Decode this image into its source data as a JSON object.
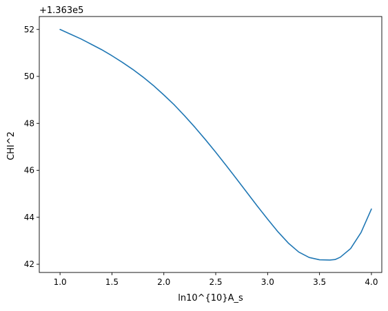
{
  "chart_data": {
    "type": "line",
    "title": "",
    "xlabel": "ln10^{10}A_s",
    "ylabel": "CHI^2",
    "offset_label": "+1.363e5",
    "xlim": [
      0.8,
      4.1
    ],
    "ylim": [
      41.65,
      52.55
    ],
    "x_ticks": [
      1.0,
      1.5,
      2.0,
      2.5,
      3.0,
      3.5,
      4.0
    ],
    "x_tick_labels": [
      "1.0",
      "1.5",
      "2.0",
      "2.5",
      "3.0",
      "3.5",
      "4.0"
    ],
    "y_ticks": [
      42,
      44,
      46,
      48,
      50,
      52
    ],
    "y_tick_labels": [
      "42",
      "44",
      "46",
      "48",
      "50",
      "52"
    ],
    "grid": false,
    "legend": "none",
    "colors": {
      "series": "#1f77b4",
      "axes": "#000000"
    },
    "series": [
      {
        "x": [
          1.0,
          1.1,
          1.2,
          1.3,
          1.4,
          1.5,
          1.6,
          1.7,
          1.8,
          1.9,
          2.0,
          2.1,
          2.2,
          2.3,
          2.4,
          2.5,
          2.6,
          2.7,
          2.8,
          2.9,
          3.0,
          3.1,
          3.2,
          3.3,
          3.4,
          3.5,
          3.6,
          3.65,
          3.7,
          3.8,
          3.9,
          4.0
        ],
        "values": [
          52.0,
          51.8,
          51.6,
          51.37,
          51.14,
          50.88,
          50.6,
          50.3,
          49.97,
          49.61,
          49.21,
          48.79,
          48.32,
          47.83,
          47.31,
          46.77,
          46.21,
          45.64,
          45.06,
          44.48,
          43.92,
          43.38,
          42.9,
          42.52,
          42.29,
          42.19,
          42.18,
          42.2,
          42.3,
          42.67,
          43.35,
          44.35
        ]
      }
    ]
  }
}
